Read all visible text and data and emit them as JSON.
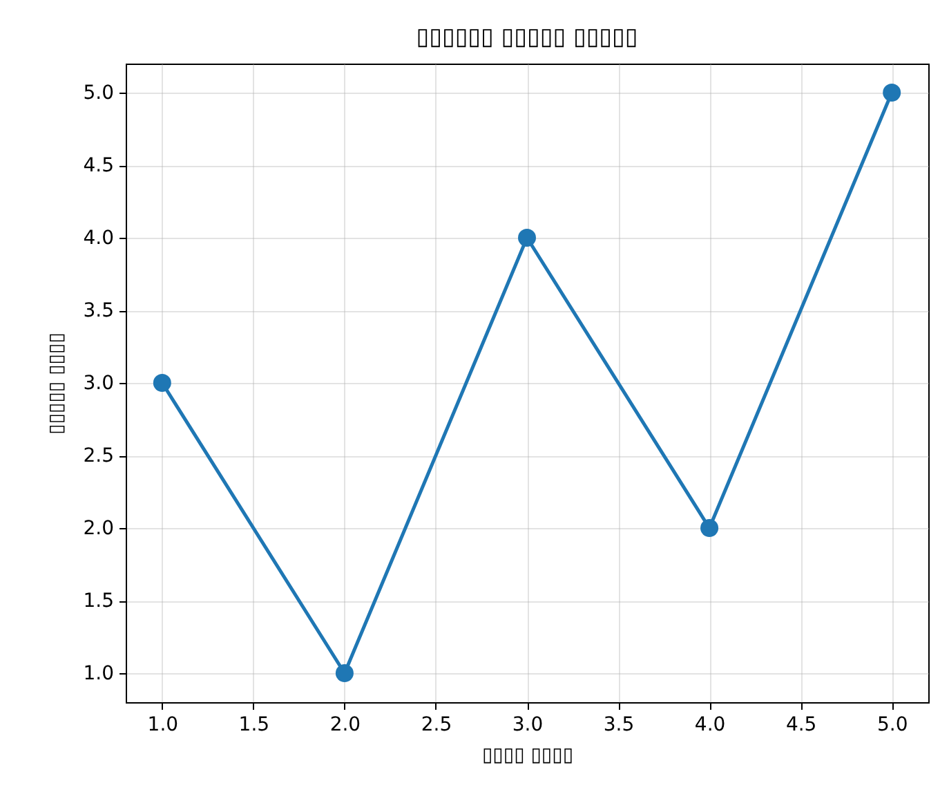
{
  "chart_data": {
    "type": "line",
    "title": "▯▯▯▯▯▯ ▯▯▯▯▯ ▯▯▯▯▯",
    "xlabel": "▯▯▯▯ ▯▯▯▯",
    "ylabel": "▯▯▯▯▯ ▯▯▯▯",
    "x": [
      1,
      2,
      3,
      4,
      5
    ],
    "values": [
      3,
      1,
      4,
      2,
      5
    ],
    "color": "#1f77b4",
    "marker": "circle",
    "grid": true,
    "xlim": [
      0.8,
      5.2
    ],
    "ylim": [
      0.8,
      5.2
    ],
    "xticks": [
      {
        "value": 1,
        "label": "1.0"
      },
      1.5,
      {
        "value": 2,
        "label": "2.0"
      },
      2.5,
      {
        "value": 3,
        "label": "3.0"
      },
      3.5,
      {
        "value": 4,
        "label": "4.0"
      },
      4.5,
      {
        "value": 5,
        "label": "5.0"
      }
    ],
    "yticks": [
      {
        "value": 1,
        "label": "1.0"
      },
      1.5,
      {
        "value": 2,
        "label": "2.0"
      },
      2.5,
      {
        "value": 3,
        "label": "3.0"
      },
      3.5,
      {
        "value": 4,
        "label": "4.0"
      },
      4.5,
      {
        "value": 5,
        "label": "5.0"
      }
    ]
  }
}
